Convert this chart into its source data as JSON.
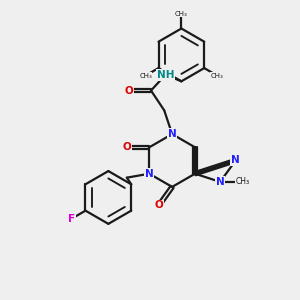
{
  "background_color": "#efefef",
  "bond_color": "#1a1a1a",
  "N_color": "#2020ff",
  "O_color": "#dd0000",
  "F_color": "#dd00dd",
  "NH_color": "#008888",
  "line_width": 1.6,
  "figsize": [
    3.0,
    3.0
  ],
  "dpi": 100,
  "xlim": [
    0,
    10
  ],
  "ylim": [
    0,
    10
  ]
}
